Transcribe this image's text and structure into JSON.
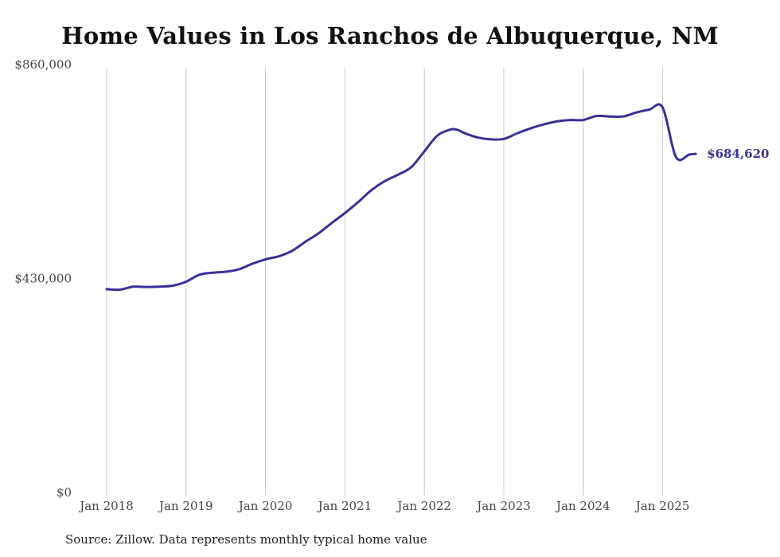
{
  "title": "Home Values in Los Ranchos de Albuquerque, NM",
  "source": "Source: Zillow. Data represents monthly typical home value",
  "colors": {
    "line": "#3a3197",
    "grid": "#c8c8c8",
    "text": "#444444"
  },
  "chart_data": {
    "type": "line",
    "title": "Home Values in Los Ranchos de Albuquerque, NM",
    "xlabel": "",
    "ylabel": "",
    "ylim": [
      0,
      860000
    ],
    "y_ticks": [
      {
        "value": 0,
        "label": "$0"
      },
      {
        "value": 430000,
        "label": "$430,000"
      },
      {
        "value": 860000,
        "label": "$860,000"
      }
    ],
    "x_ticks": [
      {
        "value": "2018-01",
        "label": "Jan 2018"
      },
      {
        "value": "2019-01",
        "label": "Jan 2019"
      },
      {
        "value": "2020-01",
        "label": "Jan 2020"
      },
      {
        "value": "2021-01",
        "label": "Jan 2021"
      },
      {
        "value": "2022-01",
        "label": "Jan 2022"
      },
      {
        "value": "2023-01",
        "label": "Jan 2023"
      },
      {
        "value": "2024-01",
        "label": "Jan 2024"
      },
      {
        "value": "2025-01",
        "label": "Jan 2025"
      }
    ],
    "grid": "vertical lines at x ticks",
    "legend": "none",
    "end_label": "$684,620",
    "series": [
      {
        "x": [
          "2018-01",
          "2018-03",
          "2018-05",
          "2018-07",
          "2018-09",
          "2018-11",
          "2019-01",
          "2019-03",
          "2019-05",
          "2019-07",
          "2019-09",
          "2019-11",
          "2020-01",
          "2020-03",
          "2020-05",
          "2020-07",
          "2020-09",
          "2020-11",
          "2021-01",
          "2021-03",
          "2021-05",
          "2021-07",
          "2021-09",
          "2021-11",
          "2022-01",
          "2022-03",
          "2022-05",
          "2022-06",
          "2022-07",
          "2022-09",
          "2022-11",
          "2023-01",
          "2023-03",
          "2023-05",
          "2023-07",
          "2023-09",
          "2023-11",
          "2024-01",
          "2024-03",
          "2024-05",
          "2024-07",
          "2024-09",
          "2024-11",
          "2025-01",
          "2025-03",
          "2025-05",
          "2025-06"
        ],
        "values": [
          415000,
          414000,
          420000,
          419500,
          420000,
          422000,
          430000,
          444000,
          448000,
          450000,
          455000,
          466000,
          475000,
          481000,
          492000,
          510000,
          527000,
          548000,
          568000,
          590000,
          614000,
          632000,
          645000,
          660000,
          692000,
          724000,
          736000,
          735000,
          729000,
          720000,
          716000,
          717000,
          728000,
          738000,
          746000,
          752000,
          755000,
          755000,
          763000,
          762000,
          762000,
          770000,
          776000,
          780000,
          683000,
          684000,
          684620
        ]
      }
    ]
  }
}
